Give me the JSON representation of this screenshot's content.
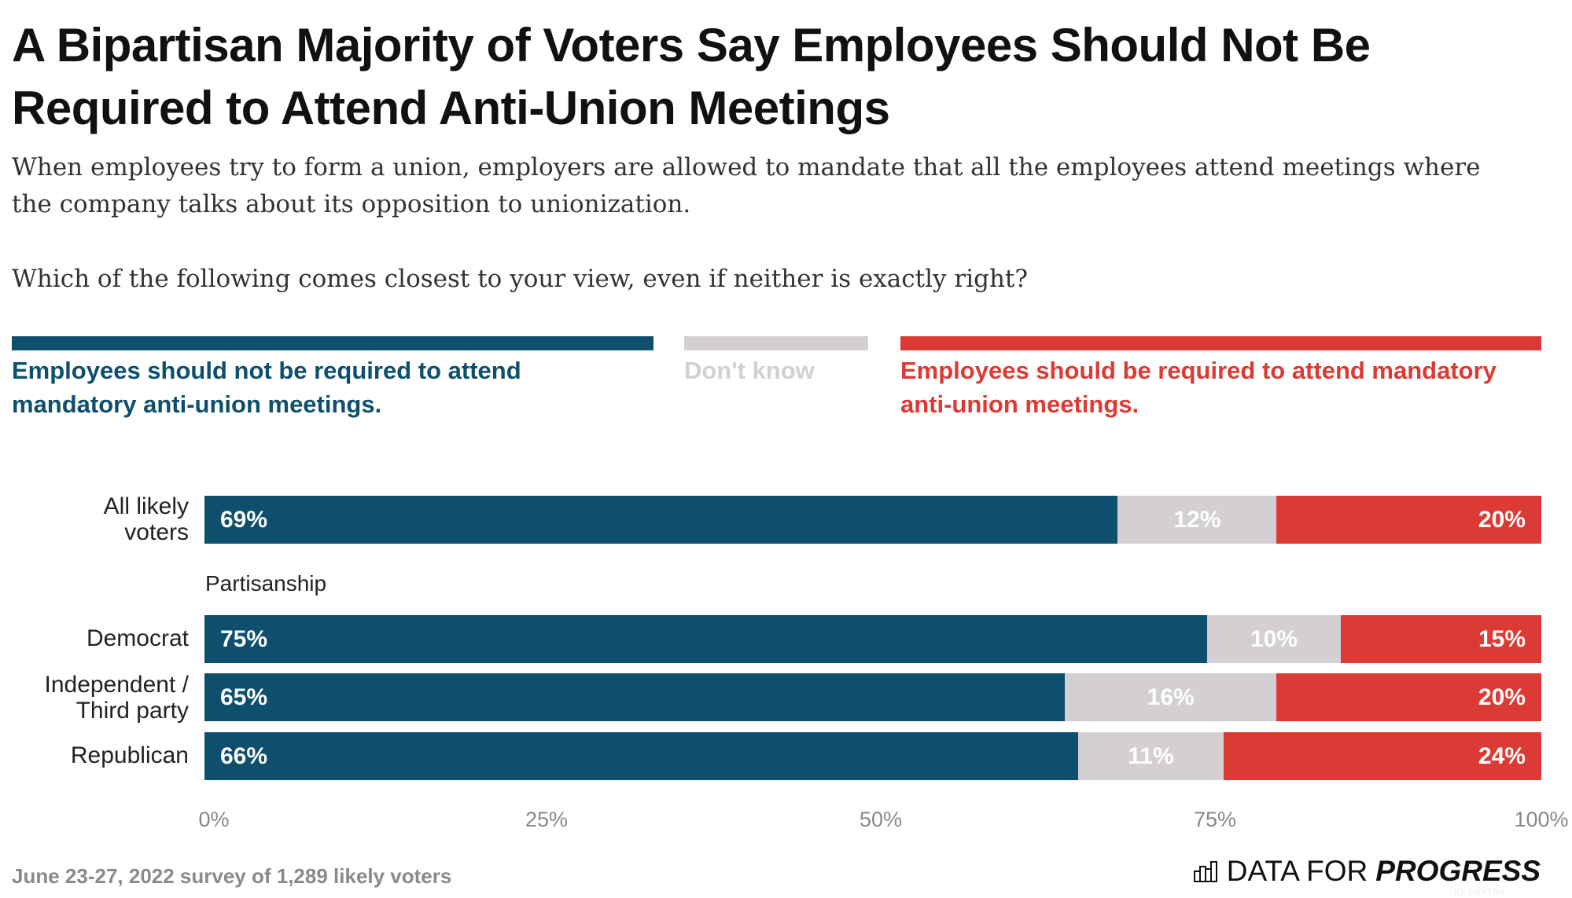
{
  "chart_data": {
    "type": "bar",
    "stacked": true,
    "orientation": "horizontal",
    "title": "A Bipartisan Majority of Voters Say Employees Should Not Be Required to Attend Anti-Union Meetings",
    "subtitle": "When employees try to form a union, employers are allowed to mandate that all the employees attend meetings where the company talks about its opposition to unionization.",
    "question": "Which of the following comes closest to your view, even if neither is exactly right?",
    "legend_position": "top",
    "series": [
      {
        "name": "Employees should not be required to attend mandatory anti-union meetings.",
        "color": "#0d4f6c",
        "values": [
          69,
          75,
          65,
          66
        ]
      },
      {
        "name": "Don't know",
        "color": "#d3cfd2",
        "values": [
          12,
          10,
          16,
          11
        ]
      },
      {
        "name": "Employees should be required to attend mandatory anti-union meetings.",
        "color": "#dc3a34",
        "values": [
          20,
          15,
          20,
          24
        ]
      }
    ],
    "categories": [
      "All likely voters",
      "Democrat",
      "Independent / Third party",
      "Republican"
    ],
    "group_label": "Partisanship",
    "xlim": [
      0,
      100
    ],
    "xticks": [
      "0%",
      "25%",
      "50%",
      "75%",
      "100%"
    ],
    "grid": false
  },
  "footer": "June 23-27, 2022 survey of 1,289 likely voters",
  "logo": {
    "text_light": "DATA FOR",
    "text_bold": "PROGRESS",
    "id": "ID: U4YTB9",
    "icon": "bar-chart-icon"
  }
}
